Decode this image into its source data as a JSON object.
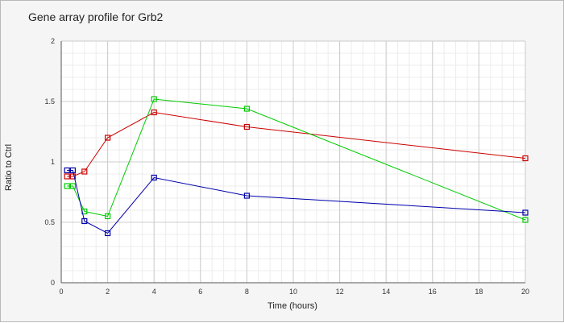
{
  "chart_data": {
    "type": "line",
    "title": "Gene array profile for Grb2",
    "xlabel": "Time (hours)",
    "ylabel": "Ratio to Ctrl",
    "xlim": [
      0,
      20
    ],
    "ylim": [
      0,
      2
    ],
    "xticks": [
      0,
      2,
      4,
      6,
      8,
      10,
      12,
      14,
      16,
      18,
      20
    ],
    "yticks": [
      0,
      0.5,
      1,
      1.5,
      2
    ],
    "ytick_labels": [
      "0",
      "0.5",
      "1",
      "1.5",
      "2"
    ],
    "grid": true,
    "series": [
      {
        "color": "#cc0000",
        "marker": "square-open",
        "x": [
          0.25,
          0.5,
          1,
          2,
          4,
          8,
          20
        ],
        "y": [
          0.88,
          0.88,
          0.92,
          1.2,
          1.41,
          1.29,
          1.03
        ]
      },
      {
        "color": "#00cc00",
        "marker": "square-open",
        "x": [
          0.25,
          0.5,
          1,
          2,
          4,
          8,
          20
        ],
        "y": [
          0.8,
          0.8,
          0.59,
          0.55,
          1.52,
          1.44,
          0.52
        ]
      },
      {
        "color": "#0000aa",
        "marker": "square-open",
        "x": [
          0.25,
          0.5,
          1,
          2,
          4,
          8,
          20
        ],
        "y": [
          0.93,
          0.93,
          0.51,
          0.41,
          0.87,
          0.72,
          0.58
        ]
      }
    ]
  }
}
